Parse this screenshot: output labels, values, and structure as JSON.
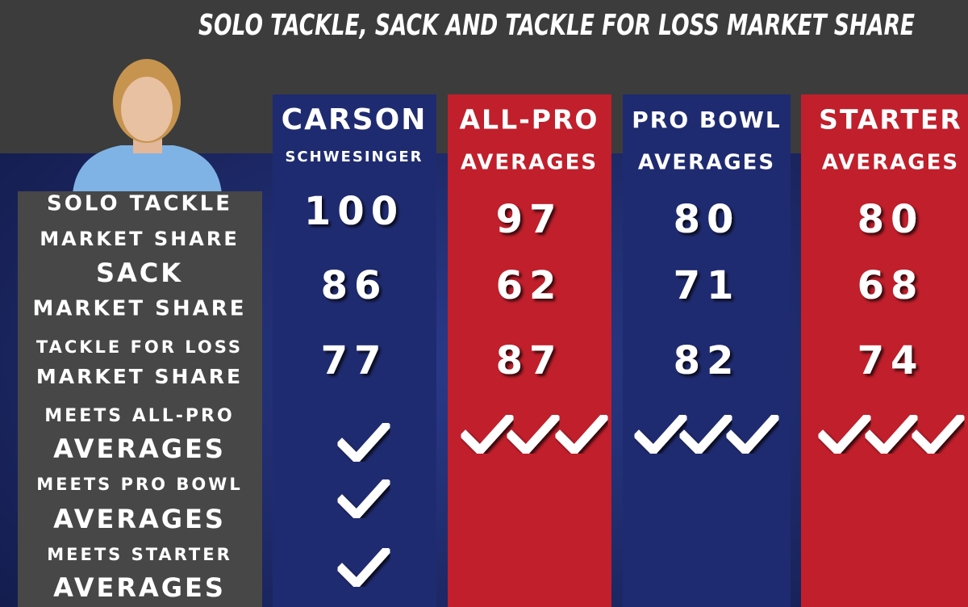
{
  "title": "SOLO TACKLE, SACK AND TACKLE FOR LOSS MARKET SHARE",
  "row_labels": [
    [
      "SOLO TACKLE",
      "MARKET SHARE"
    ],
    [
      "SACK",
      "MARKET SHARE"
    ],
    [
      "TACKLE FOR LOSS",
      "MARKET SHARE"
    ],
    [
      "MEETS ALL-PRO",
      "AVERAGES"
    ],
    [
      "MEETS PRO BOWL",
      "AVERAGES"
    ],
    [
      "MEETS STARTER",
      "AVERAGES"
    ]
  ],
  "columns": [
    {
      "header": [
        "CARSON",
        "SCHWESINGER"
      ],
      "values": [
        100,
        86,
        77
      ]
    },
    {
      "header": [
        "ALL-PRO",
        "AVERAGES"
      ],
      "values": [
        97,
        62,
        87
      ]
    },
    {
      "header": [
        "PRO BOWL",
        "AVERAGES"
      ],
      "values": [
        80,
        71,
        82
      ]
    },
    {
      "header": [
        "STARTER",
        "AVERAGES"
      ],
      "values": [
        80,
        68,
        74
      ]
    }
  ]
}
